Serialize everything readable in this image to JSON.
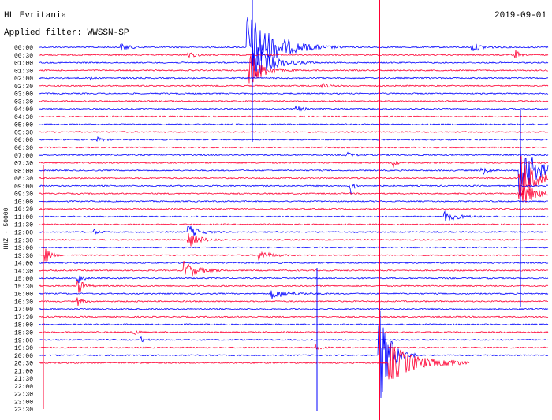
{
  "header": {
    "station": "HL Evritania",
    "date": "2019-09-01",
    "filter": "Applied filter: WWSSN-SP"
  },
  "axis_label": "HHZ - 50000",
  "rows": [
    "00:00",
    "00:30",
    "01:00",
    "01:30",
    "02:00",
    "02:30",
    "03:00",
    "03:30",
    "04:00",
    "04:30",
    "05:00",
    "05:30",
    "06:00",
    "06:30",
    "07:00",
    "07:30",
    "08:00",
    "08:30",
    "09:00",
    "09:30",
    "10:00",
    "10:30",
    "11:00",
    "11:30",
    "12:00",
    "12:30",
    "13:00",
    "13:30",
    "14:00",
    "14:30",
    "15:00",
    "15:30",
    "16:00",
    "16:30",
    "17:00",
    "17:30",
    "18:00",
    "18:30",
    "19:00",
    "19:30",
    "20:00",
    "20:30",
    "21:00",
    "21:30",
    "22:00",
    "22:30",
    "23:00",
    "23:30"
  ]
}
